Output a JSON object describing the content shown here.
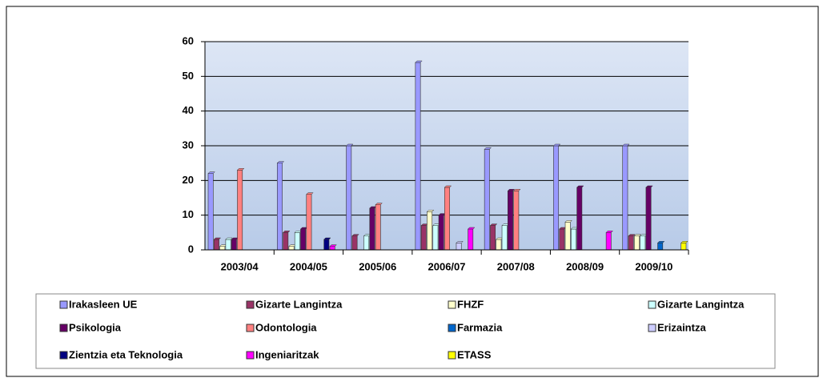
{
  "chart_data": {
    "type": "bar",
    "categories": [
      "2003/04",
      "2004/05",
      "2005/06",
      "2006/07",
      "2007/08",
      "2008/09",
      "2009/10"
    ],
    "series": [
      {
        "name": "Irakasleen UE",
        "color": "#9999ff",
        "values": [
          22,
          25,
          30,
          54,
          29,
          30,
          30
        ]
      },
      {
        "name": "Gizarte Langintza",
        "color": "#993366",
        "values": [
          3,
          5,
          4,
          7,
          7,
          6,
          4
        ]
      },
      {
        "name": "FHZF",
        "color": "#ffffcc",
        "values": [
          1,
          1,
          0,
          11,
          3,
          8,
          4
        ]
      },
      {
        "name": "Gizarte Langintza",
        "color": "#ccffff",
        "values": [
          3,
          5,
          4,
          7,
          7,
          6,
          4
        ]
      },
      {
        "name": "Psikologia",
        "color": "#660066",
        "values": [
          3,
          6,
          12,
          10,
          17,
          18,
          18
        ]
      },
      {
        "name": "Odontologia",
        "color": "#ff8080",
        "values": [
          23,
          16,
          13,
          18,
          17,
          0,
          0
        ]
      },
      {
        "name": "Farmazia",
        "color": "#0066cc",
        "values": [
          0,
          0,
          0,
          0,
          0,
          0,
          2
        ]
      },
      {
        "name": "Erizaintza",
        "color": "#ccccff",
        "values": [
          0,
          0,
          0,
          2,
          0,
          0,
          0
        ]
      },
      {
        "name": "Zientzia eta Teknologia",
        "color": "#000080",
        "values": [
          0,
          3,
          0,
          0,
          0,
          0,
          0
        ]
      },
      {
        "name": "Ingeniaritzak",
        "color": "#ff00ff",
        "values": [
          0,
          1,
          0,
          6,
          0,
          5,
          0
        ]
      },
      {
        "name": "ETASS",
        "color": "#ffff00",
        "values": [
          0,
          0,
          0,
          0,
          0,
          0,
          2
        ]
      }
    ],
    "ylim": [
      0,
      60
    ],
    "yticks": [
      0,
      10,
      20,
      30,
      40,
      50,
      60
    ],
    "grid": true,
    "legend": "bottom"
  }
}
